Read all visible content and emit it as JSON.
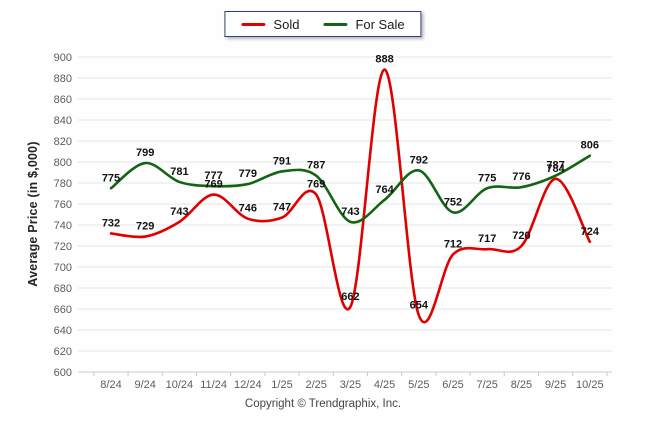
{
  "chart_data": {
    "type": "line",
    "title": "",
    "categories": [
      "8/24",
      "9/24",
      "10/24",
      "11/24",
      "12/24",
      "1/25",
      "2/25",
      "3/25",
      "4/25",
      "5/25",
      "6/25",
      "7/25",
      "8/25",
      "9/25",
      "10/25"
    ],
    "series": [
      {
        "name": "Sold",
        "color": "#e00000",
        "values": [
          732,
          729,
          743,
          769,
          746,
          747,
          769,
          662,
          888,
          654,
          712,
          717,
          720,
          784,
          724
        ]
      },
      {
        "name": "For Sale",
        "color": "#136413",
        "values": [
          775,
          799,
          781,
          777,
          779,
          791,
          787,
          743,
          764,
          792,
          752,
          775,
          776,
          787,
          806
        ]
      }
    ],
    "xlabel": "",
    "ylabel": "Average Price (in $,000)",
    "ylim": [
      600,
      900
    ],
    "ytick_step": 20,
    "grid": true,
    "legend_position": "top",
    "data_labels": true,
    "grid_color": "#e4e6e8",
    "axis_color": "#c6cace"
  },
  "footer": {
    "copyright": "Copyright © Trendgraphix, Inc."
  }
}
